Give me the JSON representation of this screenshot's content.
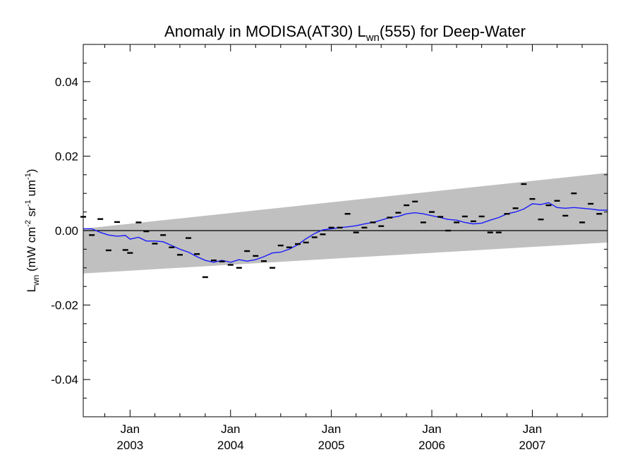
{
  "chart_data": {
    "type": "scatter",
    "title": {
      "prefix": "Anomaly in MODISA(AT30) L",
      "sub": "wn",
      "suffix": "(555) for Deep-Water"
    },
    "ylabel": {
      "prefix": "L",
      "sub": "wn",
      "unit_open": " (mW cm",
      "sup1": "-2",
      "mid": " sr",
      "sup2": "-1",
      "mid2": " um",
      "sup3": "-1",
      "close": ")"
    },
    "xlim": [
      "2002-07-15",
      "2007-10-01"
    ],
    "ylim": [
      -0.05,
      0.05
    ],
    "x_ticks": [
      {
        "date": "2003-01-01",
        "month": "Jan",
        "year": "2003"
      },
      {
        "date": "2004-01-01",
        "month": "Jan",
        "year": "2004"
      },
      {
        "date": "2005-01-01",
        "month": "Jan",
        "year": "2005"
      },
      {
        "date": "2006-01-01",
        "month": "Jan",
        "year": "2006"
      },
      {
        "date": "2007-01-01",
        "month": "Jan",
        "year": "2007"
      }
    ],
    "y_ticks": [
      {
        "value": -0.04,
        "label": "-0.04"
      },
      {
        "value": -0.02,
        "label": "-0.02"
      },
      {
        "value": 0.0,
        "label": "0.00"
      },
      {
        "value": 0.02,
        "label": "0.02"
      },
      {
        "value": 0.04,
        "label": "0.04"
      }
    ],
    "zero_line": 0.0,
    "band": {
      "x": [
        "2002-07-15",
        "2007-10-01"
      ],
      "upper": [
        0.0005,
        0.0155
      ],
      "lower": [
        -0.0115,
        -0.0032
      ]
    },
    "monthly_anomaly": {
      "points": [
        {
          "date": "2002-07-15",
          "y": 0.0037
        },
        {
          "date": "2002-08-15",
          "y": -0.0012
        },
        {
          "date": "2002-09-15",
          "y": 0.0031
        },
        {
          "date": "2002-10-15",
          "y": -0.0053
        },
        {
          "date": "2002-11-15",
          "y": 0.0023
        },
        {
          "date": "2002-12-15",
          "y": -0.0052
        },
        {
          "date": "2003-01-01",
          "y": -0.006
        },
        {
          "date": "2003-02-01",
          "y": 0.0022
        },
        {
          "date": "2003-03-01",
          "y": -0.0002
        },
        {
          "date": "2003-04-01",
          "y": -0.0035
        },
        {
          "date": "2003-05-01",
          "y": -0.0012
        },
        {
          "date": "2003-06-01",
          "y": -0.0045
        },
        {
          "date": "2003-07-01",
          "y": -0.0065
        },
        {
          "date": "2003-08-01",
          "y": -0.002
        },
        {
          "date": "2003-09-01",
          "y": -0.0063
        },
        {
          "date": "2003-10-01",
          "y": -0.0125
        },
        {
          "date": "2003-11-01",
          "y": -0.008
        },
        {
          "date": "2003-12-01",
          "y": -0.0083
        },
        {
          "date": "2004-01-01",
          "y": -0.0092
        },
        {
          "date": "2004-02-01",
          "y": -0.01
        },
        {
          "date": "2004-03-01",
          "y": -0.0055
        },
        {
          "date": "2004-04-01",
          "y": -0.0068
        },
        {
          "date": "2004-05-01",
          "y": -0.0082
        },
        {
          "date": "2004-06-01",
          "y": -0.01
        },
        {
          "date": "2004-07-01",
          "y": -0.004
        },
        {
          "date": "2004-08-01",
          "y": -0.0045
        },
        {
          "date": "2004-09-01",
          "y": -0.0036
        },
        {
          "date": "2004-10-01",
          "y": -0.0032
        },
        {
          "date": "2004-11-01",
          "y": -0.0018
        },
        {
          "date": "2004-12-01",
          "y": -0.001
        },
        {
          "date": "2005-01-01",
          "y": 0.0008
        },
        {
          "date": "2005-02-01",
          "y": 0.0008
        },
        {
          "date": "2005-03-01",
          "y": 0.0045
        },
        {
          "date": "2005-04-01",
          "y": -0.0005
        },
        {
          "date": "2005-05-01",
          "y": 0.0008
        },
        {
          "date": "2005-06-01",
          "y": 0.0022
        },
        {
          "date": "2005-07-01",
          "y": 0.0012
        },
        {
          "date": "2005-08-01",
          "y": 0.0035
        },
        {
          "date": "2005-09-01",
          "y": 0.0048
        },
        {
          "date": "2005-10-01",
          "y": 0.0068
        },
        {
          "date": "2005-11-01",
          "y": 0.0078
        },
        {
          "date": "2005-12-01",
          "y": 0.0022
        },
        {
          "date": "2006-01-01",
          "y": 0.005
        },
        {
          "date": "2006-02-01",
          "y": 0.0037
        },
        {
          "date": "2006-03-01",
          "y": 0.0
        },
        {
          "date": "2006-04-01",
          "y": 0.0022
        },
        {
          "date": "2006-05-01",
          "y": 0.0038
        },
        {
          "date": "2006-06-01",
          "y": 0.0025
        },
        {
          "date": "2006-07-01",
          "y": 0.0038
        },
        {
          "date": "2006-08-01",
          "y": -0.0005
        },
        {
          "date": "2006-09-01",
          "y": -0.0005
        },
        {
          "date": "2006-10-01",
          "y": 0.0045
        },
        {
          "date": "2006-11-01",
          "y": 0.006
        },
        {
          "date": "2006-12-01",
          "y": 0.0125
        },
        {
          "date": "2007-01-01",
          "y": 0.0085
        },
        {
          "date": "2007-02-01",
          "y": 0.003
        },
        {
          "date": "2007-03-01",
          "y": 0.0068
        },
        {
          "date": "2007-04-01",
          "y": 0.008
        },
        {
          "date": "2007-05-01",
          "y": 0.004
        },
        {
          "date": "2007-06-01",
          "y": 0.01
        },
        {
          "date": "2007-07-01",
          "y": 0.0022
        },
        {
          "date": "2007-08-01",
          "y": 0.0072
        },
        {
          "date": "2007-09-01",
          "y": 0.0045
        }
      ]
    },
    "running_mean": {
      "points": [
        {
          "date": "2002-07-15",
          "y": 0.0005
        },
        {
          "date": "2002-08-15",
          "y": 0.0005
        },
        {
          "date": "2002-09-15",
          "y": -0.0005
        },
        {
          "date": "2002-10-15",
          "y": -0.0012
        },
        {
          "date": "2002-11-15",
          "y": -0.0015
        },
        {
          "date": "2002-12-15",
          "y": -0.0013
        },
        {
          "date": "2003-01-01",
          "y": -0.0023
        },
        {
          "date": "2003-02-01",
          "y": -0.0018
        },
        {
          "date": "2003-03-01",
          "y": -0.0028
        },
        {
          "date": "2003-04-01",
          "y": -0.0028
        },
        {
          "date": "2003-05-01",
          "y": -0.003
        },
        {
          "date": "2003-06-01",
          "y": -0.004
        },
        {
          "date": "2003-07-01",
          "y": -0.005
        },
        {
          "date": "2003-08-01",
          "y": -0.0058
        },
        {
          "date": "2003-09-01",
          "y": -0.007
        },
        {
          "date": "2003-10-01",
          "y": -0.008
        },
        {
          "date": "2003-11-01",
          "y": -0.0085
        },
        {
          "date": "2003-12-01",
          "y": -0.008
        },
        {
          "date": "2004-01-01",
          "y": -0.0085
        },
        {
          "date": "2004-02-01",
          "y": -0.0078
        },
        {
          "date": "2004-03-01",
          "y": -0.0082
        },
        {
          "date": "2004-04-01",
          "y": -0.0078
        },
        {
          "date": "2004-05-01",
          "y": -0.007
        },
        {
          "date": "2004-06-01",
          "y": -0.006
        },
        {
          "date": "2004-07-01",
          "y": -0.0058
        },
        {
          "date": "2004-08-01",
          "y": -0.005
        },
        {
          "date": "2004-09-01",
          "y": -0.0038
        },
        {
          "date": "2004-10-01",
          "y": -0.0022
        },
        {
          "date": "2004-11-01",
          "y": -0.0008
        },
        {
          "date": "2004-12-01",
          "y": 0.0002
        },
        {
          "date": "2005-01-01",
          "y": 0.0005
        },
        {
          "date": "2005-02-01",
          "y": 0.0008
        },
        {
          "date": "2005-03-01",
          "y": 0.001
        },
        {
          "date": "2005-04-01",
          "y": 0.0013
        },
        {
          "date": "2005-05-01",
          "y": 0.0018
        },
        {
          "date": "2005-06-01",
          "y": 0.0022
        },
        {
          "date": "2005-07-01",
          "y": 0.0028
        },
        {
          "date": "2005-08-01",
          "y": 0.0035
        },
        {
          "date": "2005-09-01",
          "y": 0.0038
        },
        {
          "date": "2005-10-01",
          "y": 0.0045
        },
        {
          "date": "2005-11-01",
          "y": 0.0048
        },
        {
          "date": "2005-12-01",
          "y": 0.0045
        },
        {
          "date": "2006-01-01",
          "y": 0.004
        },
        {
          "date": "2006-02-01",
          "y": 0.0035
        },
        {
          "date": "2006-03-01",
          "y": 0.003
        },
        {
          "date": "2006-04-01",
          "y": 0.0028
        },
        {
          "date": "2006-05-01",
          "y": 0.0022
        },
        {
          "date": "2006-06-01",
          "y": 0.0018
        },
        {
          "date": "2006-07-01",
          "y": 0.002
        },
        {
          "date": "2006-08-01",
          "y": 0.0028
        },
        {
          "date": "2006-09-01",
          "y": 0.0035
        },
        {
          "date": "2006-10-01",
          "y": 0.0045
        },
        {
          "date": "2006-11-01",
          "y": 0.005
        },
        {
          "date": "2006-12-01",
          "y": 0.0058
        },
        {
          "date": "2007-01-01",
          "y": 0.0072
        },
        {
          "date": "2007-02-01",
          "y": 0.007
        },
        {
          "date": "2007-03-01",
          "y": 0.0075
        },
        {
          "date": "2007-04-01",
          "y": 0.0062
        },
        {
          "date": "2007-05-01",
          "y": 0.006
        },
        {
          "date": "2007-06-01",
          "y": 0.0062
        },
        {
          "date": "2007-07-01",
          "y": 0.006
        },
        {
          "date": "2007-08-01",
          "y": 0.0058
        },
        {
          "date": "2007-09-01",
          "y": 0.0055
        },
        {
          "date": "2007-10-01",
          "y": 0.0055
        }
      ]
    },
    "colors": {
      "band": "#c0c0c0",
      "running_mean": "#1a1aff",
      "marker": "#000000",
      "axis": "#000000"
    },
    "grid": false
  }
}
